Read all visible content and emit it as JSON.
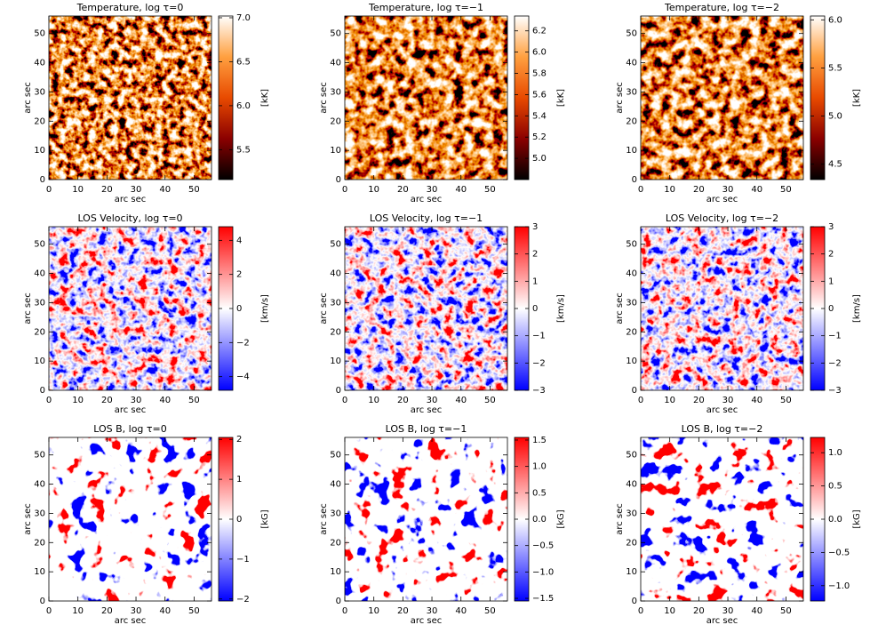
{
  "chart_data": [
    {
      "type": "image",
      "title": "Temperature, log τ=0",
      "xlabel": "arc sec",
      "ylabel": "arc sec",
      "xlim": [
        0,
        56
      ],
      "ylim": [
        0,
        56
      ],
      "xticks": [
        0,
        10,
        20,
        30,
        40,
        50
      ],
      "yticks": [
        0,
        10,
        20,
        30,
        40,
        50
      ],
      "colorbar": {
        "label": "[kK]",
        "lim": [
          5.16,
          7.02
        ],
        "ticks": [
          5.5,
          {
            "value": 6,
            "label": "6.0"
          },
          6.5,
          {
            "value": 7,
            "label": "7.0"
          }
        ],
        "colormap": [
          "#000000",
          "#8b0000",
          "#e84a00",
          "#ffa040",
          "#ffffff"
        ]
      }
    },
    {
      "type": "image",
      "title": "Temperature, log τ=−1",
      "xlabel": "arc sec",
      "ylabel": "arc sec",
      "xlim": [
        0,
        56
      ],
      "ylim": [
        0,
        56
      ],
      "xticks": [
        0,
        10,
        20,
        30,
        40,
        50
      ],
      "yticks": [
        0,
        10,
        20,
        30,
        40,
        50
      ],
      "colorbar": {
        "label": "[kK]",
        "lim": [
          4.8,
          6.34
        ],
        "ticks": [
          {
            "value": 5,
            "label": "5.0"
          },
          5.2,
          5.4,
          5.6,
          5.8,
          {
            "value": 6,
            "label": "6.0"
          },
          6.2
        ],
        "colormap": [
          "#000000",
          "#8b0000",
          "#e84a00",
          "#ffa040",
          "#ffffff"
        ]
      }
    },
    {
      "type": "image",
      "title": "Temperature, log τ=−2",
      "xlabel": "arc sec",
      "ylabel": "arc sec",
      "xlim": [
        0,
        56
      ],
      "ylim": [
        0,
        56
      ],
      "xticks": [
        0,
        10,
        20,
        30,
        40,
        50
      ],
      "yticks": [
        0,
        10,
        20,
        30,
        40,
        50
      ],
      "colorbar": {
        "label": "[kK]",
        "lim": [
          4.34,
          6.04
        ],
        "ticks": [
          4.5,
          {
            "value": 5,
            "label": "5.0"
          },
          5.5,
          {
            "value": 6,
            "label": "6.0"
          }
        ],
        "colormap": [
          "#000000",
          "#8b0000",
          "#e84a00",
          "#ffa040",
          "#ffffff"
        ]
      }
    },
    {
      "type": "image",
      "title": "LOS Velocity, log τ=0",
      "xlabel": "arc sec",
      "ylabel": "arc sec",
      "xlim": [
        0,
        56
      ],
      "ylim": [
        0,
        56
      ],
      "xticks": [
        0,
        10,
        20,
        30,
        40,
        50
      ],
      "yticks": [
        0,
        10,
        20,
        30,
        40,
        50
      ],
      "colorbar": {
        "label": "[km/s]",
        "lim": [
          -4.8,
          4.8
        ],
        "ticks": [
          {
            "value": -4,
            "label": "−4"
          },
          {
            "value": -2,
            "label": "−2"
          },
          0,
          2,
          4
        ],
        "colormap": [
          "#0000ff",
          "#ffffff",
          "#ff0000"
        ]
      }
    },
    {
      "type": "image",
      "title": "LOS Velocity, log τ=−1",
      "xlabel": "arc sec",
      "ylabel": "arc sec",
      "xlim": [
        0,
        56
      ],
      "ylim": [
        0,
        56
      ],
      "xticks": [
        0,
        10,
        20,
        30,
        40,
        50
      ],
      "yticks": [
        0,
        10,
        20,
        30,
        40,
        50
      ],
      "colorbar": {
        "label": "[km/s]",
        "lim": [
          -3,
          3
        ],
        "ticks": [
          {
            "value": -3,
            "label": "−3"
          },
          {
            "value": -2,
            "label": "−2"
          },
          {
            "value": -1,
            "label": "−1"
          },
          0,
          1,
          2,
          3
        ],
        "colormap": [
          "#0000ff",
          "#ffffff",
          "#ff0000"
        ]
      }
    },
    {
      "type": "image",
      "title": "LOS Velocity, log τ=−2",
      "xlabel": "arc sec",
      "ylabel": "arc sec",
      "xlim": [
        0,
        56
      ],
      "ylim": [
        0,
        56
      ],
      "xticks": [
        0,
        10,
        20,
        30,
        40,
        50
      ],
      "yticks": [
        0,
        10,
        20,
        30,
        40,
        50
      ],
      "colorbar": {
        "label": "[km/s]",
        "lim": [
          -3,
          3
        ],
        "ticks": [
          {
            "value": -3,
            "label": "−3"
          },
          {
            "value": -2,
            "label": "−2"
          },
          {
            "value": -1,
            "label": "−1"
          },
          0,
          1,
          2,
          3
        ],
        "colormap": [
          "#0000ff",
          "#ffffff",
          "#ff0000"
        ]
      }
    },
    {
      "type": "image",
      "title": "LOS B, log τ=0",
      "xlabel": "arc sec",
      "ylabel": "arc sec",
      "xlim": [
        0,
        56
      ],
      "ylim": [
        0,
        56
      ],
      "xticks": [
        0,
        10,
        20,
        30,
        40,
        50
      ],
      "yticks": [
        0,
        10,
        20,
        30,
        40,
        50
      ],
      "colorbar": {
        "label": "[kG]",
        "lim": [
          -2.05,
          2.05
        ],
        "ticks": [
          {
            "value": -2,
            "label": "−2"
          },
          {
            "value": -1,
            "label": "−1"
          },
          0,
          1,
          2
        ],
        "colormap": [
          "#0000ff",
          "#ffffff",
          "#ff0000"
        ]
      }
    },
    {
      "type": "image",
      "title": "LOS B, log τ=−1",
      "xlabel": "arc sec",
      "ylabel": "arc sec",
      "xlim": [
        0,
        56
      ],
      "ylim": [
        0,
        56
      ],
      "xticks": [
        0,
        10,
        20,
        30,
        40,
        50
      ],
      "yticks": [
        0,
        10,
        20,
        30,
        40,
        50
      ],
      "colorbar": {
        "label": "[kG]",
        "lim": [
          -1.55,
          1.55
        ],
        "ticks": [
          {
            "value": -1.5,
            "label": "−1.5"
          },
          {
            "value": -1,
            "label": "−1.0"
          },
          {
            "value": -0.5,
            "label": "−0.5"
          },
          {
            "value": 0,
            "label": "0.0"
          },
          0.5,
          {
            "value": 1,
            "label": "1.0"
          },
          1.5
        ],
        "colormap": [
          "#0000ff",
          "#ffffff",
          "#ff0000"
        ]
      }
    },
    {
      "type": "image",
      "title": "LOS B, log τ=−2",
      "xlabel": "arc sec",
      "ylabel": "arc sec",
      "xlim": [
        0,
        56
      ],
      "ylim": [
        0,
        56
      ],
      "xticks": [
        0,
        10,
        20,
        30,
        40,
        50
      ],
      "yticks": [
        0,
        10,
        20,
        30,
        40,
        50
      ],
      "colorbar": {
        "label": "[kG]",
        "lim": [
          -1.23,
          1.23
        ],
        "ticks": [
          {
            "value": -1,
            "label": "−1.0"
          },
          {
            "value": -0.5,
            "label": "−0.5"
          },
          {
            "value": 0,
            "label": "0.0"
          },
          0.5,
          {
            "value": 1,
            "label": "1.0"
          }
        ],
        "colormap": [
          "#0000ff",
          "#ffffff",
          "#ff0000"
        ]
      }
    }
  ]
}
